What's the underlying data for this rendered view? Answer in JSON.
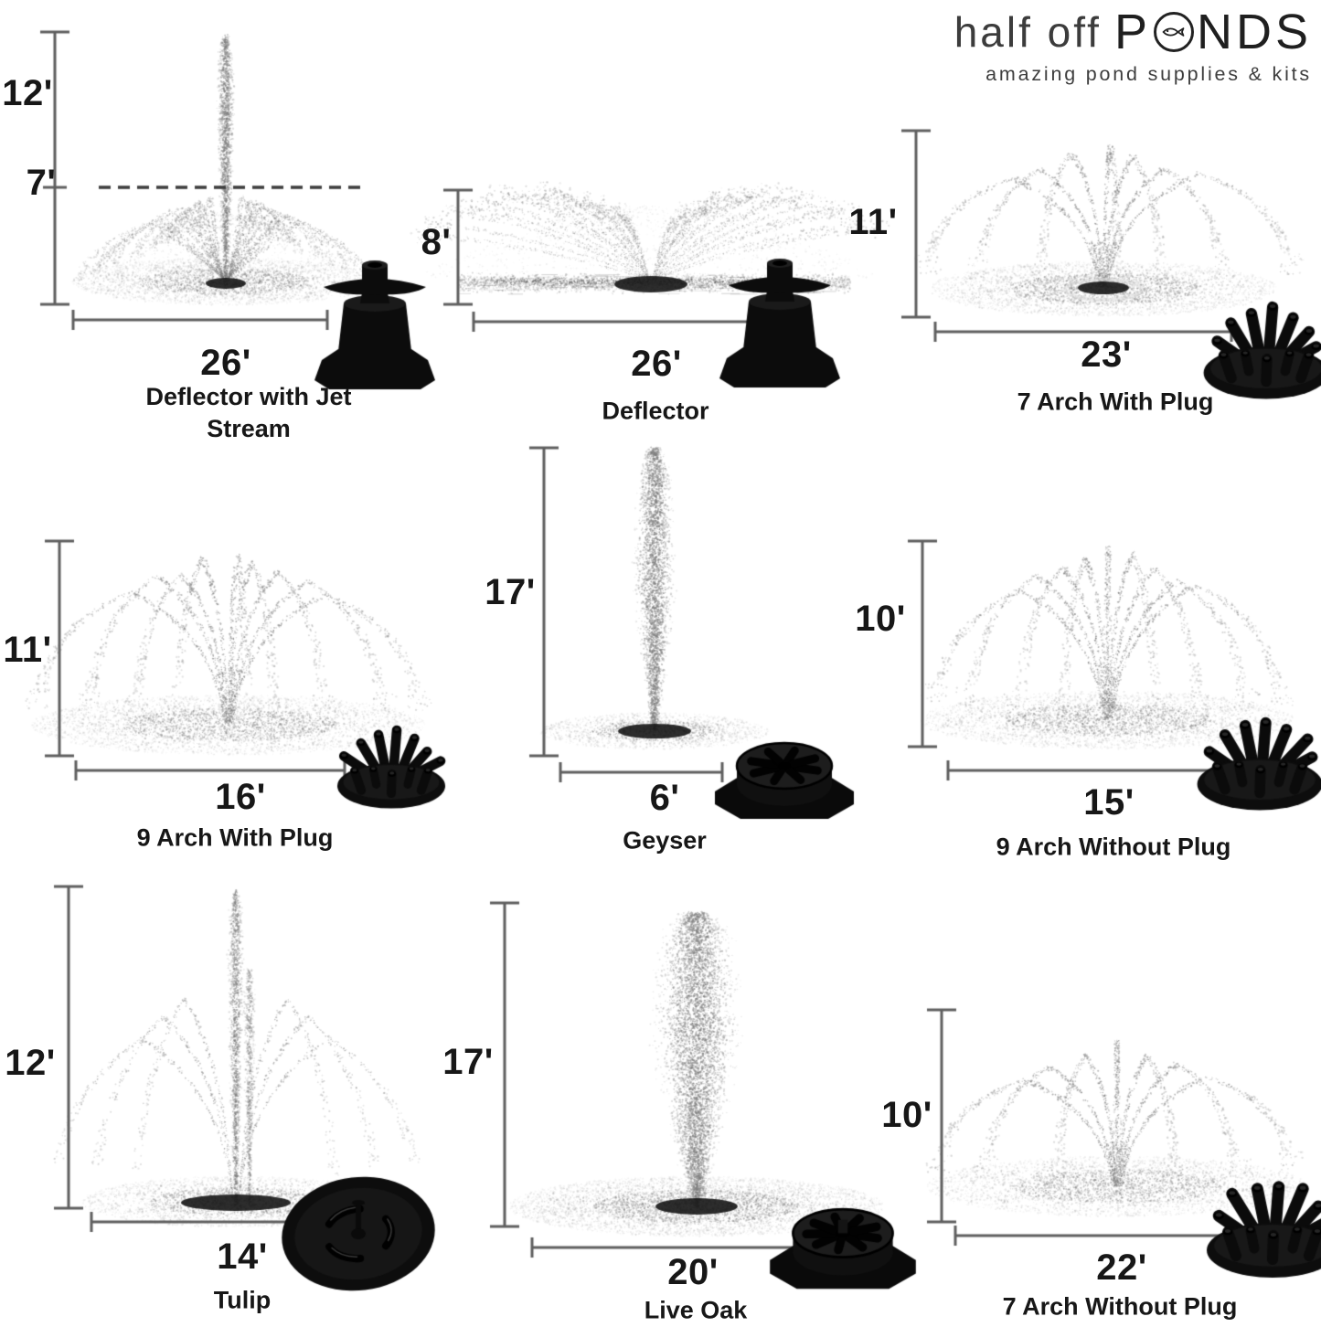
{
  "logo": {
    "brand_light": "half off",
    "brand_p": "P",
    "brand_nds": "NDS",
    "tagline": "amazing pond supplies & kits"
  },
  "colors": {
    "text": "#171717",
    "ruler": "#5f5f5f",
    "dashed_line": "#3d3d3d",
    "spray": "#7d7d7d",
    "nozzle": "#0d0d0d",
    "background": "#ffffff"
  },
  "cells": [
    {
      "name": "Deflector with Jet Stream",
      "height": "12'",
      "secondary_height": "7'",
      "width": "26'",
      "height_ft": 12,
      "secondary_height_ft": 7,
      "width_ft": 26,
      "shape": "deflector_jet",
      "nozzle": "deflector-nozzle"
    },
    {
      "name": "Deflector",
      "height": "8'",
      "width": "26'",
      "height_ft": 8,
      "width_ft": 26,
      "shape": "deflector_fan",
      "nozzle": "deflector-nozzle"
    },
    {
      "name": "7 Arch With Plug",
      "height": "11'",
      "width": "23'",
      "height_ft": 11,
      "width_ft": 23,
      "shape": "arch",
      "arches": 7,
      "with_plug": true,
      "nozzle": "multi-tube-crown-nozzle"
    },
    {
      "name": "9 Arch With Plug",
      "height": "11'",
      "width": "16'",
      "height_ft": 11,
      "width_ft": 16,
      "shape": "arch",
      "arches": 9,
      "with_plug": true,
      "nozzle": "multi-tube-crown-nozzle"
    },
    {
      "name": "Geyser",
      "height": "17'",
      "width": "6'",
      "height_ft": 17,
      "width_ft": 6,
      "shape": "geyser",
      "nozzle": "slotted-cap-nozzle"
    },
    {
      "name": "9 Arch Without Plug",
      "height": "10'",
      "width": "15'",
      "height_ft": 10,
      "width_ft": 15,
      "shape": "arch",
      "arches": 9,
      "with_plug": false,
      "nozzle": "multi-tube-crown-nozzle"
    },
    {
      "name": "Tulip",
      "height": "12'",
      "width": "14'",
      "height_ft": 12,
      "width_ft": 14,
      "shape": "tulip",
      "nozzle": "tulip-disc-nozzle"
    },
    {
      "name": "Live Oak",
      "height": "17'",
      "width": "20'",
      "height_ft": 17,
      "width_ft": 20,
      "shape": "liveoak",
      "nozzle": "slotted-cap-nozzle"
    },
    {
      "name": "7 Arch Without Plug",
      "height": "10'",
      "width": "22'",
      "height_ft": 10,
      "width_ft": 22,
      "shape": "arch",
      "arches": 7,
      "with_plug": false,
      "nozzle": "multi-tube-crown-nozzle"
    }
  ]
}
